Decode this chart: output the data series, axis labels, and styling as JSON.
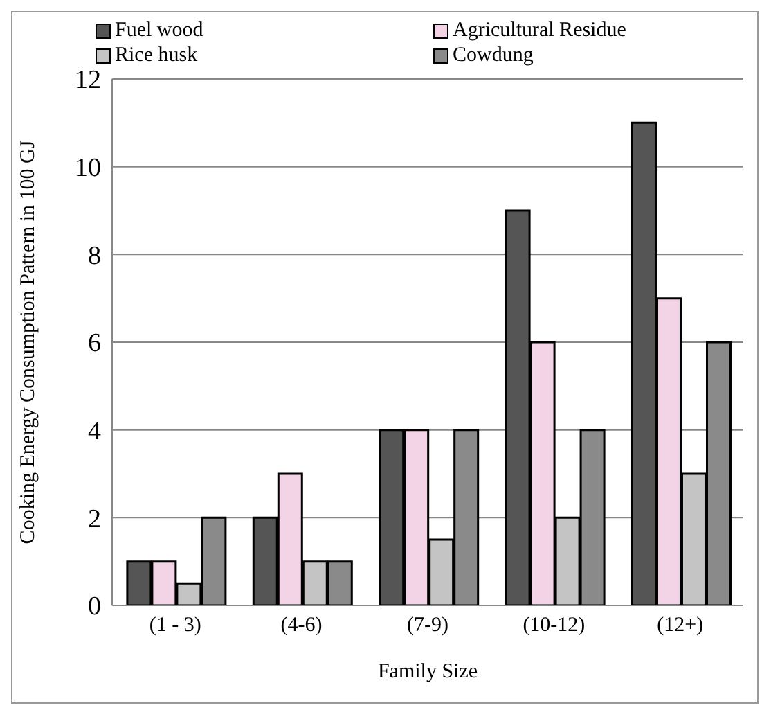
{
  "chart_data": {
    "type": "bar",
    "xlabel": "Family Size",
    "ylabel": "Cooking Energy Consumption Pattern in 100 GJ",
    "categories": [
      "(1 - 3)",
      "(4-6)",
      "(7-9)",
      "(10-12)",
      "(12+)"
    ],
    "series": [
      {
        "name": "Fuel wood",
        "color": "#555555",
        "values": [
          1,
          2,
          4,
          9,
          11
        ]
      },
      {
        "name": "Agricultural Residue",
        "color": "#f2d4e6",
        "values": [
          1,
          3,
          4,
          6,
          7
        ]
      },
      {
        "name": "Rice husk",
        "color": "#c4c4c4",
        "values": [
          0.5,
          1,
          1.5,
          2,
          3
        ]
      },
      {
        "name": "Cowdung",
        "color": "#8a8a8a",
        "values": [
          2,
          1,
          4,
          4,
          6
        ]
      }
    ],
    "ylim": [
      0,
      12
    ],
    "yticks": [
      0,
      2,
      4,
      6,
      8,
      10,
      12
    ],
    "grid": "y",
    "legend": "top"
  }
}
